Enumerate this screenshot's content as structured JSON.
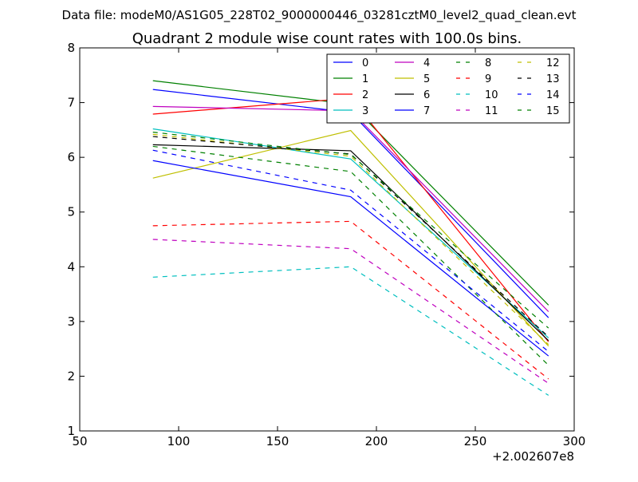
{
  "suptitle": "Data file: modeM0/AS1G05_228T02_9000000446_03281cztM0_level2_quad_clean.evt",
  "chart_data": {
    "type": "line",
    "title": "Quadrant 2 module wise count rates with 100.0s bins.",
    "xlabel": "",
    "ylabel": "",
    "x_offset_label": "+2.002607e8",
    "xlim": [
      50,
      300
    ],
    "ylim": [
      1,
      8
    ],
    "xticks": [
      50,
      100,
      150,
      200,
      250,
      300
    ],
    "xtick_labels": [
      "50",
      "100",
      "150",
      "200",
      "250",
      "300"
    ],
    "yticks": [
      1,
      2,
      3,
      4,
      5,
      6,
      7,
      8
    ],
    "ytick_labels": [
      "1",
      "2",
      "3",
      "4",
      "5",
      "6",
      "7",
      "8"
    ],
    "x": [
      87,
      187,
      287
    ],
    "legend_position": "top-right",
    "legend_columns": 4,
    "series": [
      {
        "name": "0",
        "values": [
          7.24,
          6.82,
          3.07
        ],
        "color": "#0000ff",
        "style": "solid"
      },
      {
        "name": "1",
        "values": [
          7.4,
          6.97,
          3.3
        ],
        "color": "#008000",
        "style": "solid"
      },
      {
        "name": "2",
        "values": [
          6.79,
          7.08,
          2.63
        ],
        "color": "#ff0000",
        "style": "solid"
      },
      {
        "name": "3",
        "values": [
          6.52,
          5.97,
          2.7
        ],
        "color": "#00bfbf",
        "style": "solid"
      },
      {
        "name": "4",
        "values": [
          6.93,
          6.85,
          3.18
        ],
        "color": "#bf00bf",
        "style": "solid"
      },
      {
        "name": "5",
        "values": [
          5.62,
          6.49,
          2.55
        ],
        "color": "#bfbf00",
        "style": "solid"
      },
      {
        "name": "6",
        "values": [
          6.23,
          6.12,
          2.65
        ],
        "color": "#000000",
        "style": "solid"
      },
      {
        "name": "7",
        "values": [
          5.94,
          5.28,
          2.37
        ],
        "color": "#0000ff",
        "style": "solid"
      },
      {
        "name": "8",
        "values": [
          6.2,
          5.74,
          2.2
        ],
        "color": "#008000",
        "style": "dashed"
      },
      {
        "name": "9",
        "values": [
          4.75,
          4.83,
          1.95
        ],
        "color": "#ff0000",
        "style": "dashed"
      },
      {
        "name": "10",
        "values": [
          3.81,
          4.0,
          1.65
        ],
        "color": "#00bfbf",
        "style": "dashed"
      },
      {
        "name": "11",
        "values": [
          4.5,
          4.33,
          1.87
        ],
        "color": "#bf00bf",
        "style": "dashed"
      },
      {
        "name": "12",
        "values": [
          6.42,
          6.02,
          2.58
        ],
        "color": "#bfbf00",
        "style": "dashed"
      },
      {
        "name": "13",
        "values": [
          6.38,
          6.06,
          2.72
        ],
        "color": "#000000",
        "style": "dashed"
      },
      {
        "name": "14",
        "values": [
          6.13,
          5.4,
          2.45
        ],
        "color": "#0000ff",
        "style": "dashed"
      },
      {
        "name": "15",
        "values": [
          6.46,
          6.05,
          2.88
        ],
        "color": "#008000",
        "style": "dashed"
      }
    ]
  }
}
